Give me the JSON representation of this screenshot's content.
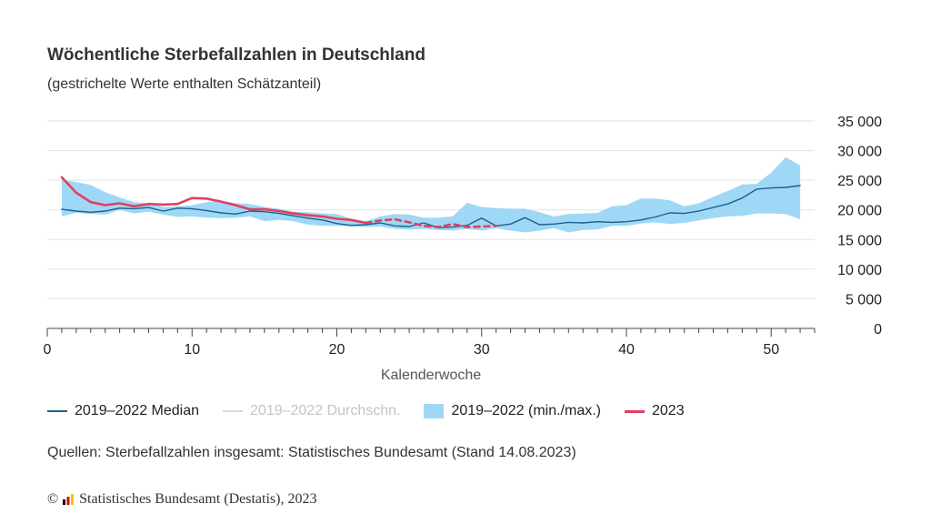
{
  "title": "Wöchentliche Sterbefallzahlen in Deutschland",
  "subtitle": "(gestrichelte Werte enthalten Schätzanteil)",
  "source": "Quellen: Sterbefallzahlen insgesamt: Statistisches Bundesamt (Stand 14.08.2023)",
  "copyright": {
    "symbol": "©",
    "text": "Statistisches Bundesamt (Destatis), 2023"
  },
  "legend": [
    {
      "label": "2019–2022 Median",
      "color": "#1f5f8b",
      "style": "line"
    },
    {
      "label": "2019–2022 Durchschn.",
      "color": "#d9d9d9",
      "style": "line",
      "label_color": "#c4c4c4"
    },
    {
      "label": "2019–2022 (min./max.)",
      "color": "#9fd8f7",
      "style": "band"
    },
    {
      "label": "2023",
      "color": "#e2405c",
      "style": "line"
    }
  ],
  "chart_data": {
    "type": "line",
    "xlabel": "Kalenderwoche",
    "ylabel": "",
    "xlim": [
      0,
      53
    ],
    "ylim": [
      0,
      35000
    ],
    "x_ticks": [
      0,
      10,
      20,
      30,
      40,
      50
    ],
    "y_ticks": [
      0,
      5000,
      10000,
      15000,
      20000,
      25000,
      30000,
      35000
    ],
    "y_tick_labels": [
      "0",
      "5 000",
      "10 000",
      "15 000",
      "20 000",
      "25 000",
      "30 000",
      "35 000"
    ],
    "y_axis_position": "right",
    "grid": true,
    "x": [
      1,
      2,
      3,
      4,
      5,
      6,
      7,
      8,
      9,
      10,
      11,
      12,
      13,
      14,
      15,
      16,
      17,
      18,
      19,
      20,
      21,
      22,
      23,
      24,
      25,
      26,
      27,
      28,
      29,
      30,
      31,
      32,
      33,
      34,
      35,
      36,
      37,
      38,
      39,
      40,
      41,
      42,
      43,
      44,
      45,
      46,
      47,
      48,
      49,
      50,
      51,
      52
    ],
    "series": [
      {
        "name": "2019–2022 (min./max.)",
        "kind": "band",
        "color": "#9fd8f7",
        "min": [
          18900,
          19500,
          19300,
          19200,
          20000,
          19400,
          19700,
          19200,
          18800,
          18900,
          18700,
          18600,
          18700,
          18900,
          18100,
          18300,
          18100,
          17500,
          17300,
          17300,
          17200,
          17100,
          17200,
          16800,
          16700,
          16800,
          16600,
          16500,
          16800,
          16500,
          16900,
          16500,
          16200,
          16500,
          16900,
          16200,
          16600,
          16700,
          17300,
          17300,
          17700,
          17900,
          17600,
          17800,
          18200,
          18600,
          18900,
          19000,
          19400,
          19400,
          19300,
          18400
        ],
        "max": [
          25100,
          24700,
          24200,
          23000,
          22100,
          21300,
          21100,
          20500,
          20600,
          20800,
          21300,
          21500,
          21100,
          21000,
          20500,
          20200,
          19700,
          19600,
          19400,
          19300,
          18500,
          18100,
          18900,
          19300,
          19200,
          18700,
          18700,
          18900,
          21200,
          20500,
          20300,
          20200,
          20200,
          19600,
          18900,
          19300,
          19400,
          19500,
          20600,
          20800,
          21900,
          21900,
          21600,
          20600,
          21100,
          22200,
          23200,
          24300,
          24400,
          26300,
          28900,
          27500
        ]
      },
      {
        "name": "2019–2022 Median",
        "kind": "line",
        "color": "#1f5f8b",
        "values": [
          20100,
          19800,
          19600,
          19800,
          20300,
          20200,
          20400,
          19800,
          20300,
          20200,
          19900,
          19500,
          19300,
          19800,
          19700,
          19400,
          19000,
          18600,
          18300,
          17700,
          17400,
          17500,
          17800,
          17300,
          17200,
          17800,
          17000,
          17100,
          17400,
          18600,
          17300,
          17600,
          18700,
          17500,
          17600,
          17900,
          17800,
          18000,
          17900,
          18000,
          18300,
          18800,
          19500,
          19400,
          19800,
          20400,
          21000,
          22000,
          23500,
          23700,
          23800,
          24100
        ]
      },
      {
        "name": "2023",
        "kind": "line",
        "color": "#e2405c",
        "values": [
          25500,
          22900,
          21300,
          20800,
          21100,
          20600,
          21000,
          20900,
          21000,
          22000,
          21900,
          21400,
          20800,
          20100,
          20100,
          19800,
          19400,
          19100,
          18900,
          18500,
          18300,
          17800,
          null,
          null,
          null,
          null,
          null,
          null,
          null,
          null,
          null,
          null,
          null,
          null,
          null,
          null,
          null,
          null,
          null,
          null,
          null,
          null,
          null,
          null,
          null,
          null,
          null,
          null,
          null,
          null,
          null,
          null
        ]
      },
      {
        "name": "2023 (Schätzanteil)",
        "kind": "line",
        "dashed": true,
        "color": "#e2405c",
        "values": [
          null,
          null,
          null,
          null,
          null,
          null,
          null,
          null,
          null,
          null,
          null,
          null,
          null,
          null,
          null,
          null,
          null,
          null,
          null,
          null,
          null,
          17800,
          18200,
          18400,
          17900,
          17300,
          17100,
          17600,
          17100,
          17200,
          17300,
          null,
          null,
          null,
          null,
          null,
          null,
          null,
          null,
          null,
          null,
          null,
          null,
          null,
          null,
          null,
          null,
          null,
          null,
          null,
          null,
          null
        ]
      }
    ]
  }
}
